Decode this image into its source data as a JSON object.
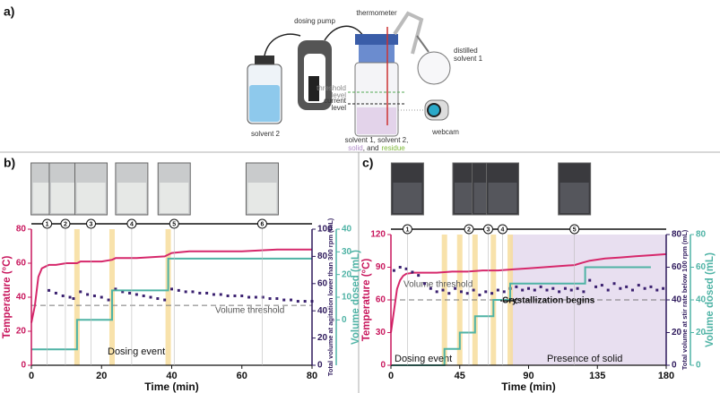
{
  "diagram": {
    "panel_label": "a)",
    "solvent2": "solvent 2",
    "pump": "dosing pump",
    "thermometer": "thermometer",
    "distilled": "distilled",
    "solvent1": "solvent 1",
    "threshold1": "threshold",
    "threshold2": "level",
    "current1": "current",
    "current2": "level",
    "webcam": "webcam",
    "caption1": "solvent 1, solvent 2,",
    "caption_solid": "solid",
    "caption_and": ", and",
    "caption_residue": "residue"
  },
  "chart_data": [
    {
      "type": "line",
      "panel_label": "b)",
      "xlabel": "Time (min)",
      "ylabel": "Temperature (°C)",
      "y2label": "Total volume at agitation lower than 300 rpm (mL)",
      "y3label": "Volume dosed (mL)",
      "xlim": [
        0,
        80
      ],
      "xticks": [
        0,
        20,
        40,
        60,
        80
      ],
      "ylim": [
        0,
        80
      ],
      "yticks": [
        0,
        20,
        40,
        60,
        80
      ],
      "ycolor": "#c8175d",
      "y2lim": [
        0,
        100
      ],
      "y2ticks": [
        0,
        20,
        40,
        60,
        80,
        100
      ],
      "y2color": "#2e1a5c",
      "y3lim": [
        -20,
        40
      ],
      "y3ticks": [
        0,
        10,
        20,
        30,
        40
      ],
      "y3color": "#4fb3a5",
      "dosing_label": "Dosing event",
      "dosing_events": [
        13,
        23,
        39
      ],
      "threshold": {
        "label": "Volume threshold",
        "value": 44
      },
      "image_markers": {
        "x": [
          4.5,
          9.7,
          17,
          28.6,
          40.7,
          65.8
        ],
        "labels": [
          "1",
          "2",
          "3",
          "4",
          "5",
          "6"
        ]
      },
      "series": [
        {
          "name": "Temperature",
          "type": "line",
          "axis": "y",
          "color": "#d6286b",
          "x": [
            0,
            1,
            2,
            3,
            4,
            5,
            7,
            10,
            13,
            14,
            20,
            23,
            24,
            30,
            38,
            39,
            40,
            45,
            50,
            60,
            70,
            80
          ],
          "values": [
            25,
            35,
            52,
            57,
            58,
            59,
            59,
            60,
            60,
            61,
            61,
            62,
            63,
            63,
            64,
            65,
            66,
            67,
            67,
            67,
            68,
            68
          ]
        },
        {
          "name": "Total volume",
          "type": "scatter",
          "axis": "y2",
          "color": "#3b2170",
          "x": [
            5,
            7,
            9,
            11,
            12,
            14,
            16,
            18,
            20,
            22,
            24,
            26,
            28,
            30,
            32,
            34,
            36,
            38,
            40,
            42,
            44,
            46,
            48,
            50,
            52,
            54,
            56,
            58,
            60,
            62,
            64,
            66,
            68,
            70,
            72,
            74,
            76,
            78,
            80
          ],
          "values": [
            55,
            53,
            51,
            50,
            49,
            54,
            52,
            51,
            50,
            48,
            56,
            54,
            53,
            52,
            51,
            50,
            49,
            48,
            56,
            55,
            54,
            54,
            53,
            53,
            52,
            52,
            51,
            51,
            51,
            50,
            50,
            50,
            49,
            49,
            48,
            48,
            47,
            47,
            47
          ]
        },
        {
          "name": "Volume dosed",
          "type": "line",
          "axis": "y3",
          "color": "#4fb3a5",
          "x": [
            0,
            13,
            13,
            23,
            23,
            39,
            39,
            80
          ],
          "values": [
            -13,
            -13,
            0,
            0,
            13,
            13,
            27,
            27
          ]
        }
      ]
    },
    {
      "type": "line",
      "panel_label": "c)",
      "xlabel": "Time (min)",
      "ylabel": "Temperature (°C)",
      "y2label": "Total volume at stir rate below 100 rpm (mL)",
      "y3label": "Volume dosed (mL)",
      "xlim": [
        0,
        180
      ],
      "xticks": [
        0,
        45,
        90,
        135,
        180
      ],
      "ylim": [
        0,
        120
      ],
      "yticks": [
        0,
        30,
        60,
        90,
        120
      ],
      "ycolor": "#c8175d",
      "y2lim": [
        0,
        80
      ],
      "y2ticks": [
        0,
        20,
        40,
        60,
        80
      ],
      "y2color": "#2e1a5c",
      "y3lim": [
        0,
        80
      ],
      "y3ticks": [
        0,
        20,
        40,
        60,
        80
      ],
      "y3color": "#4fb3a5",
      "dosing_label": "Dosing event",
      "dosing_events": [
        35,
        45,
        55,
        67,
        78
      ],
      "threshold": {
        "label": "Volume threshold",
        "value": 40
      },
      "shaded_region": {
        "label": "Presence of solid",
        "x": [
          78,
          180
        ]
      },
      "annotation": {
        "text": "Crystallization begins",
        "x": 78
      },
      "image_markers": {
        "x": [
          10.8,
          51,
          63.6,
          73,
          120
        ],
        "labels": [
          "1",
          "2",
          "3",
          "4",
          "5"
        ]
      },
      "series": [
        {
          "name": "Temperature",
          "type": "line",
          "axis": "y",
          "color": "#d6286b",
          "x": [
            0,
            2,
            4,
            6,
            8,
            10,
            15,
            20,
            30,
            40,
            50,
            60,
            70,
            80,
            90,
            100,
            110,
            120,
            125,
            130,
            140,
            150,
            160,
            170,
            180
          ],
          "values": [
            30,
            50,
            70,
            78,
            82,
            84,
            85,
            85,
            85,
            86,
            86,
            87,
            87,
            88,
            89,
            90,
            91,
            92,
            94,
            96,
            98,
            99,
            100,
            101,
            102
          ]
        },
        {
          "name": "Total volume",
          "type": "scatter",
          "axis": "y2",
          "color": "#3b2170",
          "x": [
            2,
            6,
            10,
            14,
            18,
            22,
            26,
            30,
            34,
            38,
            42,
            46,
            50,
            54,
            58,
            62,
            66,
            70,
            74,
            78,
            82,
            86,
            90,
            94,
            98,
            102,
            106,
            110,
            114,
            118,
            122,
            126,
            130,
            134,
            138,
            142,
            146,
            150,
            154,
            158,
            162,
            166,
            170,
            174,
            178
          ],
          "values": [
            58,
            60,
            59,
            57,
            55,
            50,
            47,
            45,
            46,
            44,
            47,
            45,
            44,
            46,
            43,
            45,
            44,
            46,
            45,
            47,
            48,
            46,
            47,
            46,
            48,
            46,
            47,
            45,
            47,
            46,
            47,
            45,
            52,
            48,
            49,
            46,
            50,
            47,
            48,
            46,
            49,
            47,
            48,
            46,
            47
          ]
        },
        {
          "name": "Volume dosed",
          "type": "line",
          "axis": "y3",
          "color": "#4fb3a5",
          "x": [
            0,
            35,
            35,
            45,
            45,
            55,
            55,
            67,
            67,
            78,
            78,
            127,
            127,
            170
          ],
          "values": [
            0,
            0,
            10,
            10,
            20,
            20,
            30,
            30,
            40,
            40,
            50,
            50,
            60,
            60
          ]
        }
      ]
    }
  ]
}
